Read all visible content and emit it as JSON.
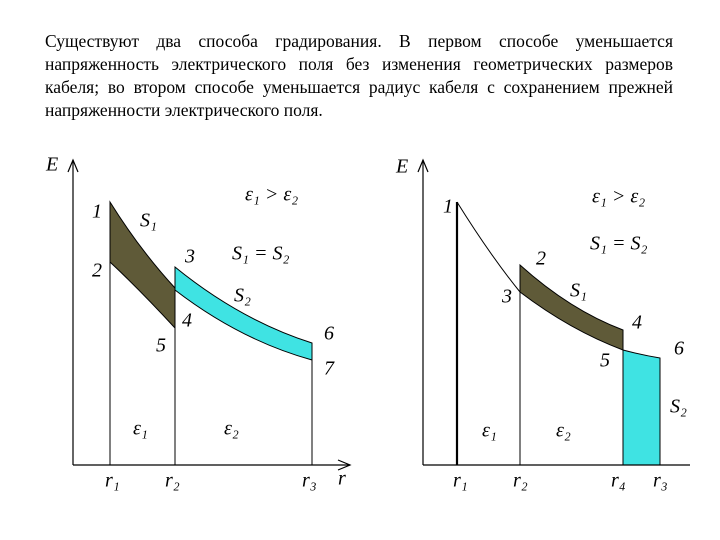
{
  "text": "Существуют два способа градирования. В первом способе уменьшается напряженность электрического поля без изменения геометрических размеров кабеля; во втором способе уменьшается радиус кабеля с сохранением прежней напряженности электрического поля.",
  "left_diagram": {
    "axis_y": "E",
    "axis_x": "r",
    "points": [
      "1",
      "2",
      "3",
      "4",
      "5",
      "6",
      "7"
    ],
    "areas": [
      "S₁",
      "S₂"
    ],
    "relation": "ε₁ > ε₂",
    "equality": "S₁ = S₂",
    "media": [
      "ε₁",
      "ε₂"
    ],
    "radii": [
      "r₁",
      "r₂",
      "r₃"
    ]
  },
  "right_diagram": {
    "axis_y": "E",
    "points": [
      "1",
      "2",
      "3",
      "4",
      "5",
      "6"
    ],
    "areas": [
      "S₁",
      "S₂"
    ],
    "relation": "ε₁ > ε₂",
    "equality": "S₁ = S₂",
    "media": [
      "ε₁",
      "ε₂"
    ],
    "radii": [
      "r₁",
      "r₂",
      "r₄",
      "r₃"
    ]
  }
}
